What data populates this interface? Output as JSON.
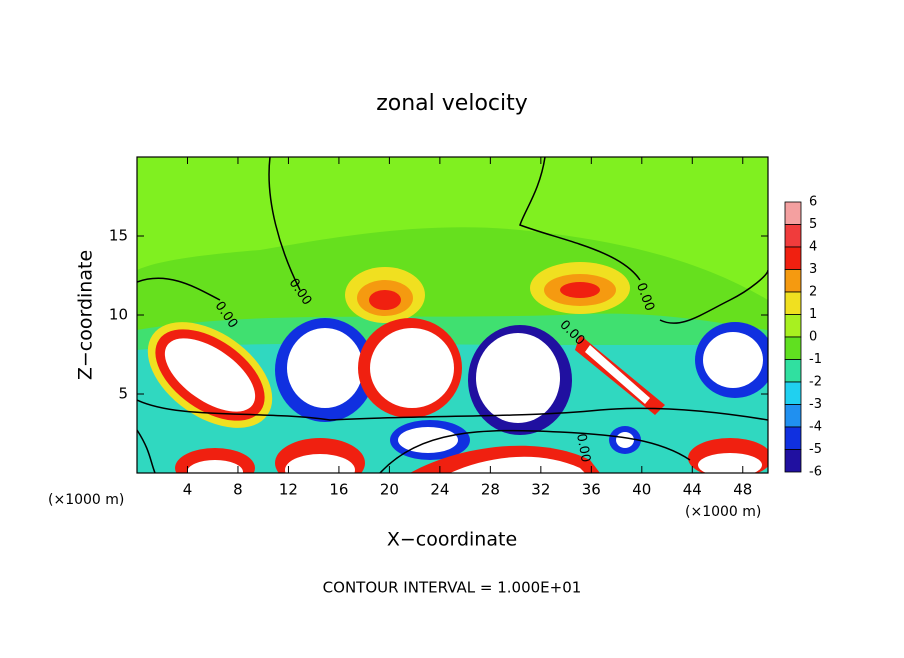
{
  "chart_data": {
    "type": "contour",
    "title": "zonal velocity",
    "x_label": "X−coordinate",
    "y_label": "Z−coordinate",
    "x_unit_label": "(×1000 m)",
    "y_unit_label": "(×1000 m)",
    "xlim": [
      0,
      50
    ],
    "xticks": [
      4,
      8,
      12,
      16,
      20,
      24,
      28,
      32,
      36,
      40,
      44,
      48
    ],
    "ylim": [
      0,
      20
    ],
    "yticks": [
      5,
      10,
      15
    ],
    "colorbar": {
      "levels": [
        6,
        5,
        4,
        3,
        2,
        1,
        0,
        -1,
        -2,
        -3,
        -4,
        -5,
        -6
      ],
      "colors": [
        "#f4a0a0",
        "#f03c3c",
        "#f02010",
        "#f59a10",
        "#f0e020",
        "#a8f020",
        "#60e020",
        "#30e0a0",
        "#20d0f0",
        "#2090f0",
        "#1030e0",
        "#2010a0"
      ]
    },
    "contour_labels": [
      "0.00",
      "0.00",
      "0.00",
      "0.00",
      "0.00"
    ],
    "footer": "CONTOUR INTERVAL = 1.000E+01"
  }
}
